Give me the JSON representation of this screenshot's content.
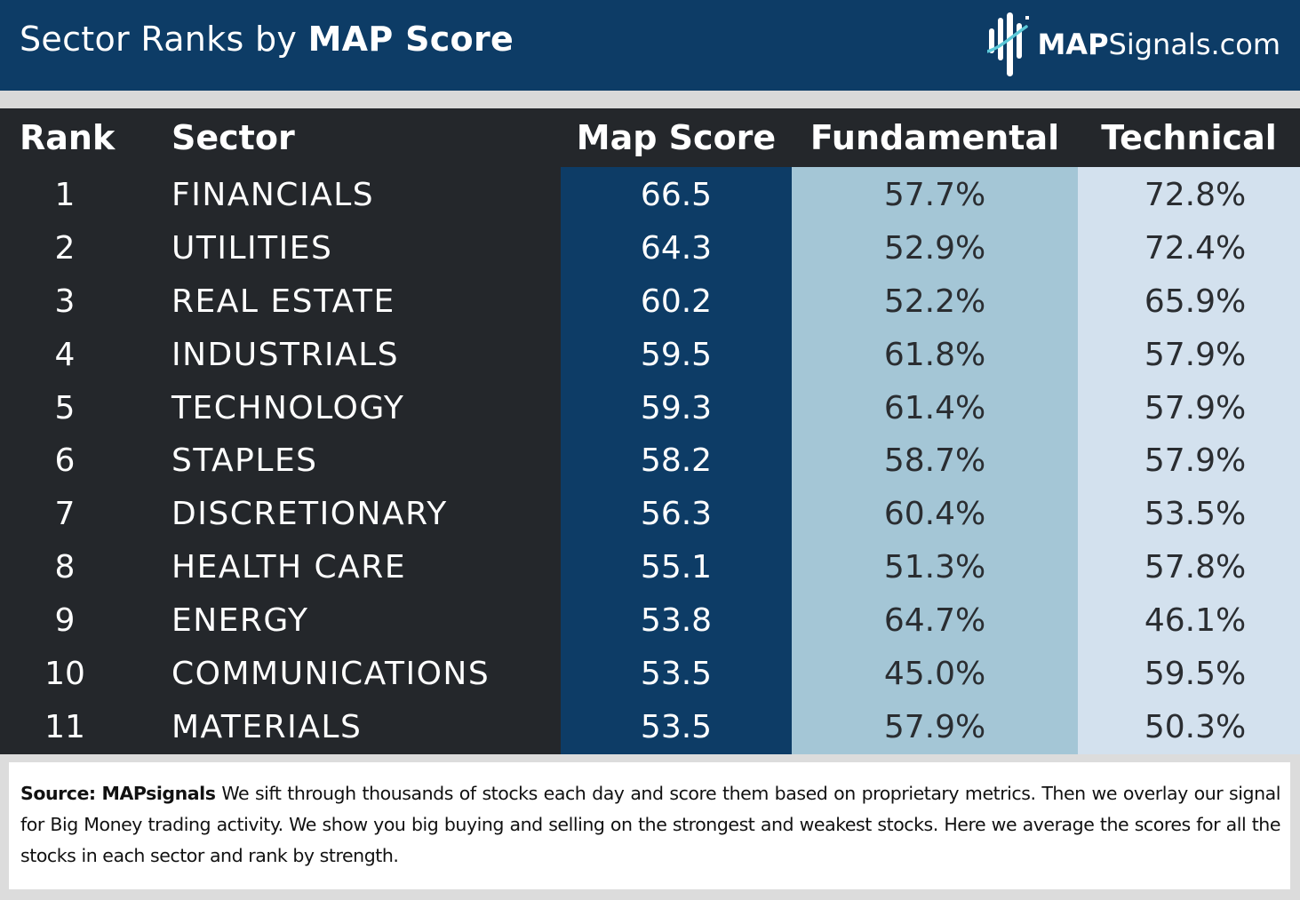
{
  "header": {
    "title_prefix": "Sector Ranks by ",
    "title_bold": "MAP Score",
    "logo_bold": "MAP",
    "logo_rest": "Signals.com"
  },
  "table": {
    "columns": {
      "rank": "Rank",
      "sector": "Sector",
      "map_score": "Map Score",
      "fundamental": "Fundamental",
      "technical": "Technical"
    },
    "rows": [
      {
        "rank": "1",
        "sector": "FINANCIALS",
        "map_score": "66.5",
        "fundamental": "57.7%",
        "technical": "72.8%"
      },
      {
        "rank": "2",
        "sector": "UTILITIES",
        "map_score": "64.3",
        "fundamental": "52.9%",
        "technical": "72.4%"
      },
      {
        "rank": "3",
        "sector": "REAL ESTATE",
        "map_score": "60.2",
        "fundamental": "52.2%",
        "technical": "65.9%"
      },
      {
        "rank": "4",
        "sector": "INDUSTRIALS",
        "map_score": "59.5",
        "fundamental": "61.8%",
        "technical": "57.9%"
      },
      {
        "rank": "5",
        "sector": "TECHNOLOGY",
        "map_score": "59.3",
        "fundamental": "61.4%",
        "technical": "57.9%"
      },
      {
        "rank": "6",
        "sector": "STAPLES",
        "map_score": "58.2",
        "fundamental": "58.7%",
        "technical": "57.9%"
      },
      {
        "rank": "7",
        "sector": "DISCRETIONARY",
        "map_score": "56.3",
        "fundamental": "60.4%",
        "technical": "53.5%"
      },
      {
        "rank": "8",
        "sector": "HEALTH CARE",
        "map_score": "55.1",
        "fundamental": "51.3%",
        "technical": "57.8%"
      },
      {
        "rank": "9",
        "sector": "ENERGY",
        "map_score": "53.8",
        "fundamental": "64.7%",
        "technical": "46.1%"
      },
      {
        "rank": "10",
        "sector": "COMMUNICATIONS",
        "map_score": "53.5",
        "fundamental": "45.0%",
        "technical": "59.5%"
      },
      {
        "rank": "11",
        "sector": "MATERIALS",
        "map_score": "53.5",
        "fundamental": "57.9%",
        "technical": "50.3%"
      }
    ]
  },
  "footer": {
    "source_label": "Source:",
    "source_name": "MAPsignals",
    "text": "We sift through thousands of stocks each day and score them based on proprietary metrics. Then we overlay our signal for Big Money trading activity. We show you big buying and selling on the strongest and weakest stocks. Here we average the scores for all the stocks in each sector and rank by strength."
  },
  "colors": {
    "header_bg": "#0d3c66",
    "table_bg": "#24272b",
    "map_col": "#0d3c66",
    "fund_col": "#a4c6d6",
    "tech_col": "#d3e1ee",
    "logo_accent": "#5bc8d8"
  },
  "icons": {
    "logo": "mapsignals-logo-icon"
  }
}
